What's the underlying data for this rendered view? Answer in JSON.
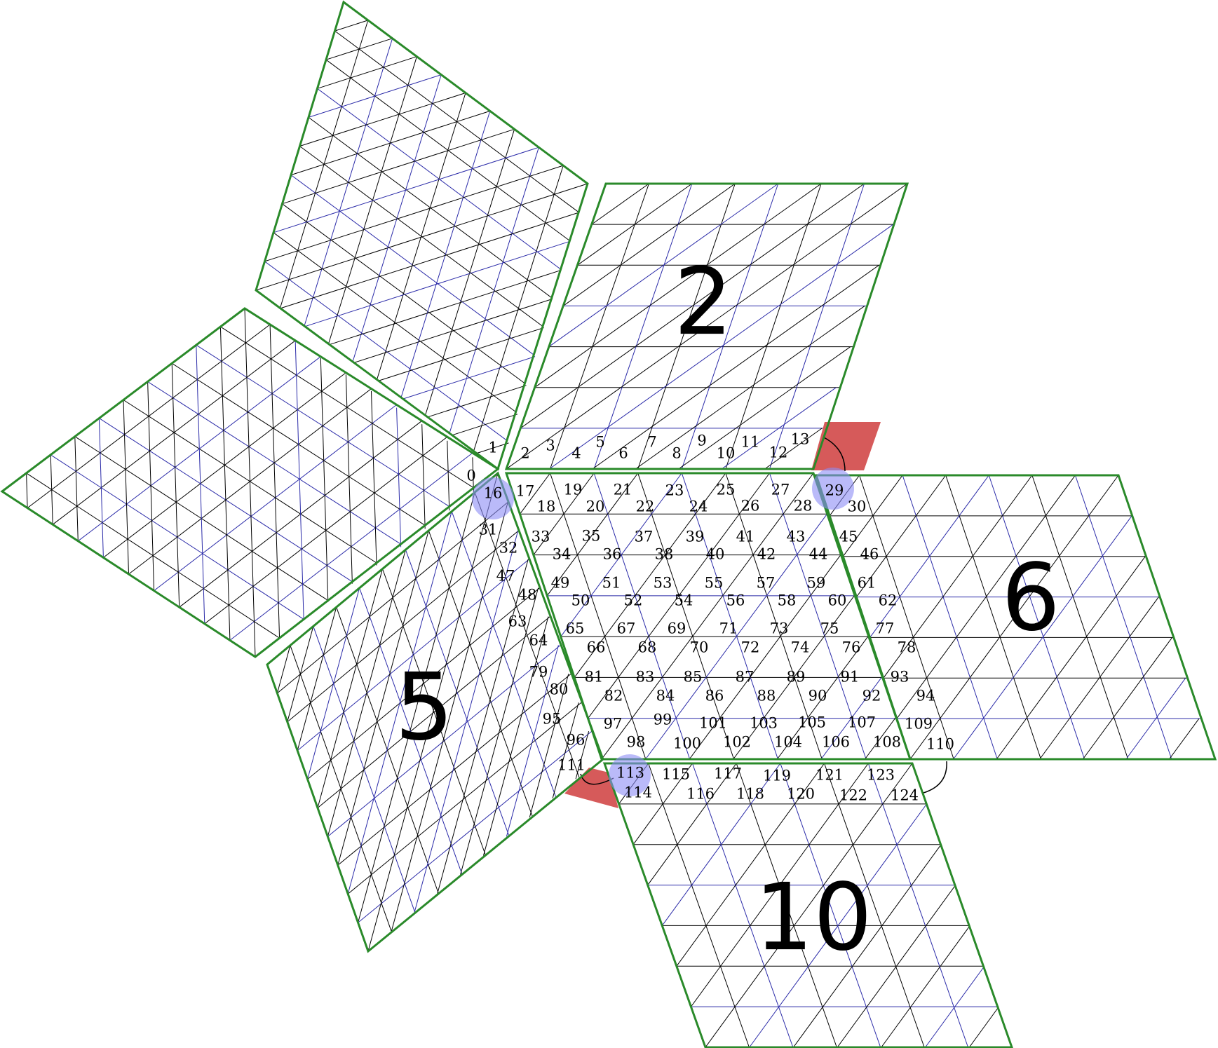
{
  "colors": {
    "background": "#ffffff",
    "outline": "#2a8a2a",
    "grid_black": "#000000",
    "grid_blue": "#2a2aa8",
    "highlight": "#8c8cf5",
    "marker": "#d65a5a",
    "arrow": "#000000"
  },
  "panels": [
    {
      "id": "panel-top",
      "label": ""
    },
    {
      "id": "panel-left",
      "label": ""
    },
    {
      "id": "panel-2",
      "label": "2"
    },
    {
      "id": "panel-center",
      "label": ""
    },
    {
      "id": "panel-6",
      "label": "6"
    },
    {
      "id": "panel-5",
      "label": "5"
    },
    {
      "id": "panel-10",
      "label": "10"
    }
  ],
  "index_labels": {
    "row_top": [
      "0",
      "1",
      "2",
      "3",
      "4",
      "5",
      "6",
      "7",
      "8",
      "9",
      "10",
      "11",
      "12",
      "13"
    ],
    "center": [
      "16",
      "17",
      "18",
      "19",
      "20",
      "21",
      "22",
      "23",
      "24",
      "25",
      "26",
      "27",
      "28",
      "29",
      "30",
      "31",
      "32",
      "33",
      "34",
      "35",
      "36",
      "37",
      "38",
      "39",
      "40",
      "41",
      "42",
      "43",
      "44",
      "45",
      "46",
      "47",
      "48",
      "49",
      "50",
      "51",
      "52",
      "53",
      "54",
      "55",
      "56",
      "57",
      "58",
      "59",
      "60",
      "61",
      "62",
      "63",
      "64",
      "65",
      "66",
      "67",
      "68",
      "69",
      "70",
      "71",
      "72",
      "73",
      "74",
      "75",
      "76",
      "77",
      "78",
      "79",
      "80",
      "81",
      "82",
      "83",
      "84",
      "85",
      "86",
      "87",
      "88",
      "89",
      "90",
      "91",
      "92",
      "93",
      "94",
      "95",
      "96",
      "97",
      "98",
      "99",
      "100",
      "101",
      "102",
      "103",
      "104",
      "105",
      "106",
      "107",
      "108",
      "109",
      "110",
      "111",
      "113",
      "114",
      "115",
      "116",
      "117",
      "118",
      "119",
      "120",
      "121",
      "122",
      "123",
      "124"
    ]
  },
  "highlighted_indices": [
    "16",
    "29",
    "113"
  ]
}
